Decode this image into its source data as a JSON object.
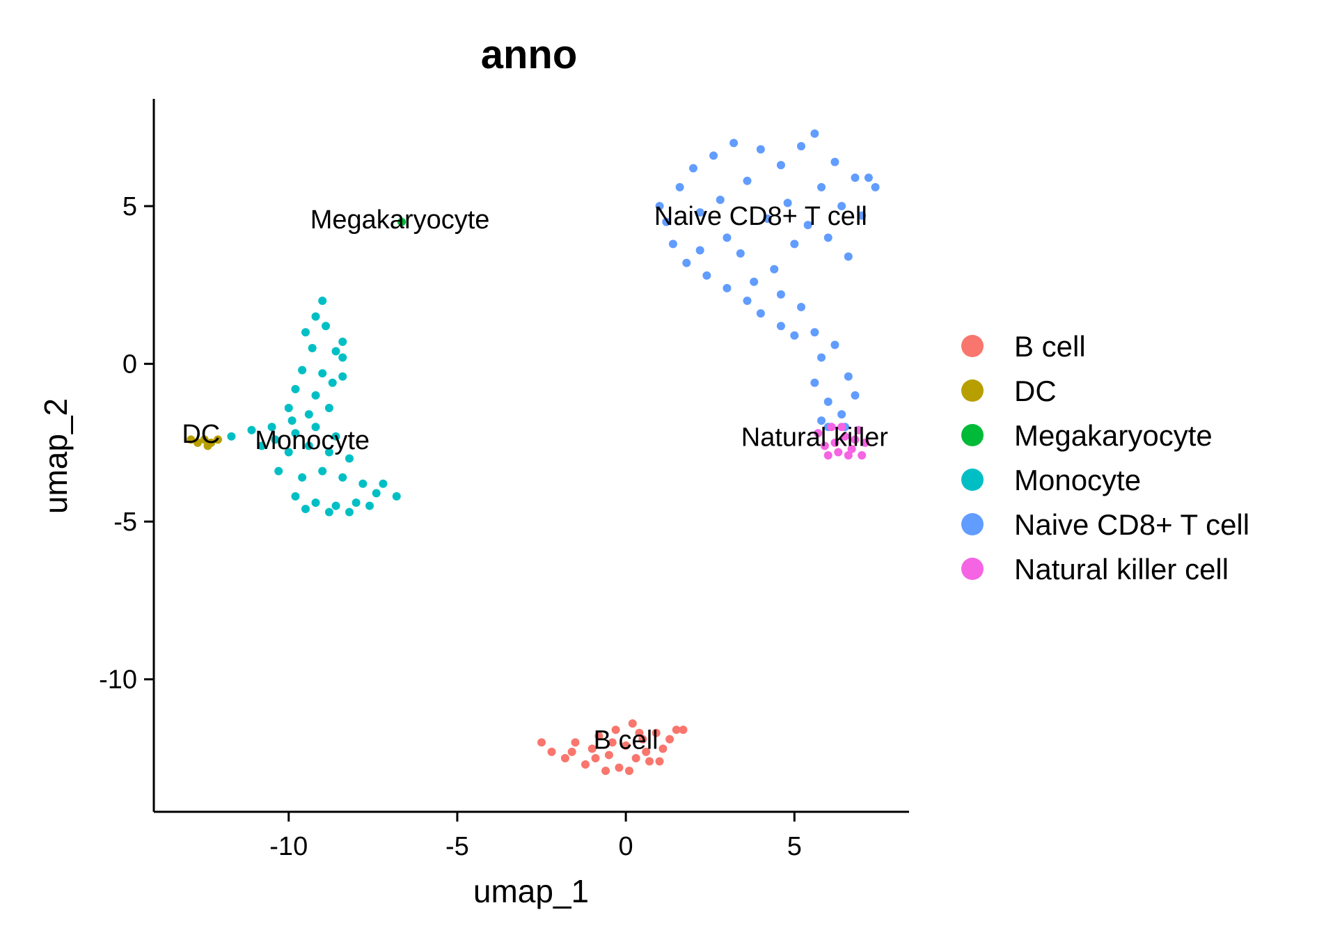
{
  "chart_data": {
    "type": "scatter",
    "title": "anno",
    "xlabel": "umap_1",
    "ylabel": "umap_2",
    "xlim": [
      -14,
      8.4
    ],
    "ylim": [
      -14.2,
      8.4
    ],
    "x_ticks": [
      -10,
      -5,
      0,
      5
    ],
    "x_tick_labels": [
      "-10",
      "-5",
      "0",
      "5"
    ],
    "y_ticks": [
      -10,
      -5,
      0,
      5
    ],
    "y_tick_labels": [
      "-10",
      "-5",
      "0",
      "5"
    ],
    "grid": false,
    "legend_position": "right",
    "series": [
      {
        "name": "B cell",
        "color": "#F8766D",
        "label_text": "B cell",
        "label_position": [
          0,
          -12.2
        ],
        "points": [
          [
            -2.5,
            -12.0
          ],
          [
            -2.2,
            -12.3
          ],
          [
            -1.8,
            -12.5
          ],
          [
            -1.5,
            -12.0
          ],
          [
            -1.2,
            -12.7
          ],
          [
            -1.0,
            -12.2
          ],
          [
            -0.8,
            -11.8
          ],
          [
            -0.6,
            -12.9
          ],
          [
            -0.5,
            -12.4
          ],
          [
            -0.3,
            -11.6
          ],
          [
            -0.2,
            -12.8
          ],
          [
            0.0,
            -12.1
          ],
          [
            0.2,
            -11.4
          ],
          [
            0.3,
            -12.5
          ],
          [
            0.5,
            -11.9
          ],
          [
            0.7,
            -12.6
          ],
          [
            0.9,
            -11.7
          ],
          [
            1.1,
            -12.2
          ],
          [
            1.3,
            -11.9
          ],
          [
            1.5,
            -11.6
          ],
          [
            1.7,
            -11.6
          ],
          [
            -0.9,
            -12.5
          ],
          [
            0.1,
            -12.9
          ],
          [
            0.6,
            -12.3
          ],
          [
            -1.6,
            -12.3
          ],
          [
            1.0,
            -12.6
          ],
          [
            -0.4,
            -12.0
          ],
          [
            0.4,
            -11.7
          ]
        ]
      },
      {
        "name": "DC",
        "color": "#B79F00",
        "label_text": "DC",
        "label_position": [
          -12.6,
          -2.5
        ],
        "points": [
          [
            -12.9,
            -2.4
          ],
          [
            -12.7,
            -2.5
          ],
          [
            -12.5,
            -2.4
          ],
          [
            -12.3,
            -2.5
          ],
          [
            -12.1,
            -2.4
          ],
          [
            -12.4,
            -2.6
          ]
        ]
      },
      {
        "name": "Megakaryocyte",
        "color": "#00BA38",
        "label_text": "Megakaryocyte",
        "label_position": [
          -6.7,
          4.3
        ],
        "points": [
          [
            -6.65,
            4.5
          ]
        ]
      },
      {
        "name": "Monocyte",
        "color": "#00BFC4",
        "label_text": "Monocyte",
        "label_position": [
          -9.3,
          -2.7
        ],
        "points": [
          [
            -9.0,
            2.0
          ],
          [
            -9.2,
            1.5
          ],
          [
            -9.5,
            1.0
          ],
          [
            -8.9,
            1.2
          ],
          [
            -9.3,
            0.5
          ],
          [
            -8.6,
            0.4
          ],
          [
            -8.4,
            0.2
          ],
          [
            -9.6,
            -0.2
          ],
          [
            -9.0,
            -0.3
          ],
          [
            -8.4,
            -0.4
          ],
          [
            -9.8,
            -0.8
          ],
          [
            -9.2,
            -1.0
          ],
          [
            -8.7,
            -0.6
          ],
          [
            -10.0,
            -1.4
          ],
          [
            -9.4,
            -1.6
          ],
          [
            -8.8,
            -1.4
          ],
          [
            -11.1,
            -2.1
          ],
          [
            -10.5,
            -2.0
          ],
          [
            -9.8,
            -2.2
          ],
          [
            -9.2,
            -2.0
          ],
          [
            -8.6,
            -2.3
          ],
          [
            -10.8,
            -2.6
          ],
          [
            -10.0,
            -2.8
          ],
          [
            -9.4,
            -2.6
          ],
          [
            -8.8,
            -2.8
          ],
          [
            -8.2,
            -3.0
          ],
          [
            -10.3,
            -3.4
          ],
          [
            -9.6,
            -3.6
          ],
          [
            -9.0,
            -3.4
          ],
          [
            -8.4,
            -3.6
          ],
          [
            -7.8,
            -3.8
          ],
          [
            -9.8,
            -4.2
          ],
          [
            -9.2,
            -4.4
          ],
          [
            -8.6,
            -4.5
          ],
          [
            -8.0,
            -4.4
          ],
          [
            -7.4,
            -4.1
          ],
          [
            -6.8,
            -4.2
          ],
          [
            -9.5,
            -4.6
          ],
          [
            -8.8,
            -4.7
          ],
          [
            -8.2,
            -4.7
          ],
          [
            -7.6,
            -4.5
          ],
          [
            -8.4,
            0.7
          ],
          [
            -9.9,
            -1.8
          ],
          [
            -10.4,
            -2.4
          ],
          [
            -7.2,
            -3.8
          ],
          [
            -11.7,
            -2.3
          ]
        ]
      },
      {
        "name": "Naive CD8+ T cell",
        "color": "#619CFF",
        "label_text": "Naive CD8+ T cell",
        "label_position": [
          4.0,
          4.4
        ],
        "points": [
          [
            1.0,
            5.0
          ],
          [
            1.2,
            4.5
          ],
          [
            1.4,
            3.8
          ],
          [
            1.6,
            5.6
          ],
          [
            1.8,
            3.2
          ],
          [
            2.0,
            6.2
          ],
          [
            2.2,
            4.8
          ],
          [
            2.4,
            2.8
          ],
          [
            2.6,
            6.6
          ],
          [
            2.8,
            5.2
          ],
          [
            3.0,
            4.0
          ],
          [
            3.2,
            7.0
          ],
          [
            3.4,
            3.5
          ],
          [
            3.6,
            5.8
          ],
          [
            3.8,
            2.6
          ],
          [
            4.0,
            6.8
          ],
          [
            4.2,
            4.6
          ],
          [
            4.4,
            3.0
          ],
          [
            4.6,
            6.3
          ],
          [
            4.8,
            5.1
          ],
          [
            5.0,
            3.8
          ],
          [
            5.2,
            6.9
          ],
          [
            5.4,
            4.4
          ],
          [
            5.6,
            7.3
          ],
          [
            5.8,
            5.6
          ],
          [
            6.0,
            4.0
          ],
          [
            6.2,
            6.4
          ],
          [
            6.4,
            5.0
          ],
          [
            6.6,
            3.4
          ],
          [
            6.8,
            5.9
          ],
          [
            7.0,
            4.7
          ],
          [
            7.2,
            5.9
          ],
          [
            7.4,
            5.6
          ],
          [
            2.2,
            3.6
          ],
          [
            3.0,
            2.4
          ],
          [
            3.6,
            2.0
          ],
          [
            4.0,
            1.6
          ],
          [
            4.6,
            2.2
          ],
          [
            5.2,
            1.8
          ],
          [
            5.6,
            1.0
          ],
          [
            5.8,
            0.2
          ],
          [
            5.6,
            -0.6
          ],
          [
            6.0,
            -1.2
          ],
          [
            5.8,
            -1.8
          ],
          [
            6.4,
            -1.6
          ],
          [
            6.6,
            -0.4
          ],
          [
            6.2,
            0.6
          ],
          [
            5.0,
            0.9
          ],
          [
            4.6,
            1.2
          ],
          [
            6.8,
            -1.0
          ],
          [
            6.5,
            -2.0
          ],
          [
            6.0,
            -2.0
          ]
        ]
      },
      {
        "name": "Natural killer cell",
        "color": "#F564E3",
        "label_text": "Natural killer",
        "label_position": [
          5.6,
          -2.6
        ],
        "points": [
          [
            5.7,
            -2.2
          ],
          [
            5.9,
            -2.6
          ],
          [
            6.1,
            -2.0
          ],
          [
            6.3,
            -2.8
          ],
          [
            6.5,
            -2.3
          ],
          [
            6.7,
            -2.7
          ],
          [
            6.9,
            -2.1
          ],
          [
            7.1,
            -2.5
          ],
          [
            6.2,
            -2.5
          ],
          [
            6.6,
            -2.9
          ],
          [
            6.0,
            -2.9
          ],
          [
            6.8,
            -2.4
          ],
          [
            6.4,
            -2.0
          ],
          [
            7.0,
            -2.9
          ]
        ]
      }
    ]
  }
}
